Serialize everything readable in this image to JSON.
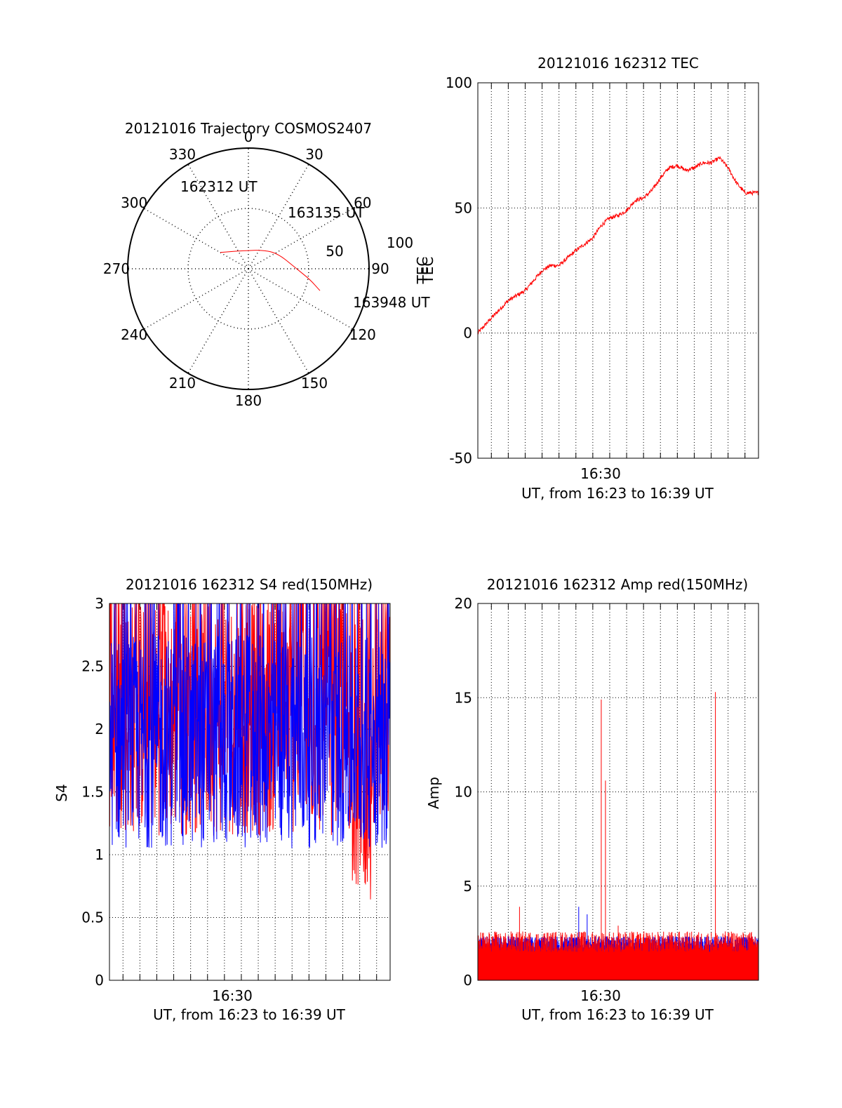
{
  "chart_data": [
    {
      "type": "polar",
      "title": "20121016 Trajectory COSMOS2407",
      "angle_labels": [
        "0",
        "30",
        "60",
        "90",
        "120",
        "150",
        "180",
        "210",
        "240",
        "270",
        "300",
        "330"
      ],
      "radial_labels": [
        "50",
        "100"
      ],
      "radial_range": [
        0,
        100
      ],
      "colors": {
        "track": "#ff0000",
        "axes": "#000000"
      },
      "series": [
        {
          "points_az_el": [
            [
              -60,
              27
            ],
            [
              -30,
              17
            ],
            [
              0,
              15
            ],
            [
              30,
              18
            ],
            [
              60,
              27
            ],
            [
              90,
              40
            ],
            [
              100,
              52
            ],
            [
              107,
              62
            ]
          ]
        }
      ],
      "annotations": [
        {
          "text": "162312 UT",
          "az": -60,
          "el": 27
        },
        {
          "text": "163135 UT",
          "az": 60,
          "el": 27
        },
        {
          "text": "163948 UT",
          "az": 107,
          "el": 62
        }
      ]
    },
    {
      "type": "line",
      "title": "20121016 162312 TEC",
      "ylabel": "TEC",
      "xlabel": "UT, from 16:23 to 16:39 UT",
      "x_tick_label": "16:30",
      "ylim": [
        -50,
        100
      ],
      "yticks": [
        "100",
        "50",
        "0",
        "-50"
      ],
      "xlim": [
        "16:23:12",
        "16:39:48"
      ],
      "grid": true,
      "colors": {
        "series": "#ff0000"
      },
      "series": [
        {
          "x": [
            "16:23:12",
            "16:24:00",
            "16:25:00",
            "16:26:00",
            "16:27:00",
            "16:27:30",
            "16:28:00",
            "16:29:00",
            "16:30:00",
            "16:30:30",
            "16:31:00",
            "16:31:30",
            "16:32:00",
            "16:32:30",
            "16:33:00",
            "16:33:30",
            "16:34:00",
            "16:34:30",
            "16:35:00",
            "16:35:30",
            "16:36:00",
            "16:36:30",
            "16:37:00",
            "16:37:30",
            "16:38:00",
            "16:38:30",
            "16:39:00",
            "16:39:48"
          ],
          "y": [
            0,
            6,
            13,
            17,
            25,
            27,
            27,
            33,
            38,
            43,
            46,
            47,
            49,
            53,
            54,
            57,
            62,
            66,
            67,
            65,
            66,
            68,
            68,
            70,
            66,
            60,
            56,
            56
          ]
        }
      ]
    },
    {
      "type": "line",
      "title": "20121016 162312 S4 red(150MHz)",
      "ylabel": "S4",
      "xlabel": "UT, from 16:23 to 16:39 UT",
      "x_tick_label": "16:30",
      "ylim": [
        0,
        3
      ],
      "yticks": [
        "3",
        "2.5",
        "2",
        "1.5",
        "1",
        "0.5",
        "0"
      ],
      "xlim": [
        "16:23:12",
        "16:39:48"
      ],
      "grid": true,
      "colors": {
        "red": "#ff0000",
        "blue": "#0000ff"
      },
      "series": [
        {
          "name": "red",
          "mean": 2.1,
          "min": 0.57,
          "max": 3.0
        },
        {
          "name": "blue",
          "mean": 1.9,
          "min": 0.9,
          "max": 3.0
        }
      ]
    },
    {
      "type": "line",
      "title": "20121016 162312 Amp red(150MHz)",
      "ylabel": "Amp",
      "xlabel": "UT, from 16:23 to 16:39 UT",
      "x_tick_label": "16:30",
      "ylim": [
        0,
        20
      ],
      "yticks": [
        "20",
        "15",
        "10",
        "5",
        "0"
      ],
      "xlim": [
        "16:23:12",
        "16:39:48"
      ],
      "grid": true,
      "colors": {
        "red": "#ff0000",
        "blue": "#0000ff"
      },
      "series": [
        {
          "name": "red",
          "baseline": 2.0,
          "spikes": [
            {
              "x": "16:25:40",
              "y": 3.9
            },
            {
              "x": "16:30:30",
              "y": 14.9
            },
            {
              "x": "16:30:45",
              "y": 10.6
            },
            {
              "x": "16:31:30",
              "y": 2.9
            },
            {
              "x": "16:37:15",
              "y": 15.3
            }
          ]
        },
        {
          "name": "blue",
          "baseline": 1.8,
          "spikes": [
            {
              "x": "16:29:10",
              "y": 3.9
            },
            {
              "x": "16:29:40",
              "y": 3.5
            }
          ]
        }
      ]
    }
  ]
}
